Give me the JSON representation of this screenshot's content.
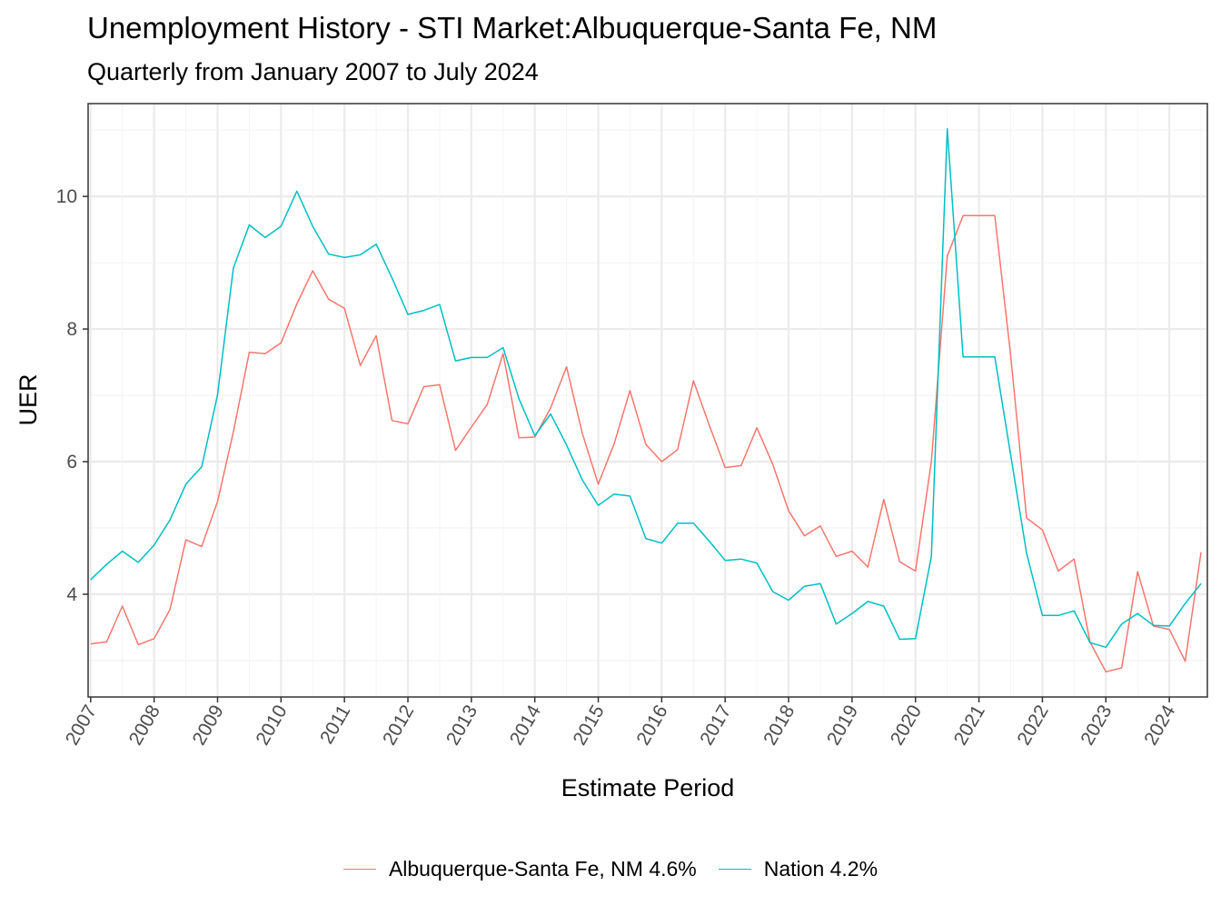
{
  "chart_data": {
    "type": "line",
    "title": "Unemployment History - STI Market:Albuquerque-Santa Fe, NM",
    "subtitle": "Quarterly from January 2007 to July 2024",
    "xlabel": "Estimate Period",
    "ylabel": "UER",
    "x_tick_labels": [
      "2007",
      "2008",
      "2009",
      "2010",
      "2011",
      "2012",
      "2013",
      "2014",
      "2015",
      "2016",
      "2017",
      "2018",
      "2019",
      "2020",
      "2021",
      "2022",
      "2023",
      "2024"
    ],
    "y_tick_labels": [
      "4",
      "6",
      "8",
      "10"
    ],
    "y_ticks": [
      4,
      6,
      8,
      10
    ],
    "x_range": [
      2006.96,
      2024.6
    ],
    "ylim": [
      2.45,
      11.4
    ],
    "grid": true,
    "legend_position": "bottom",
    "x": [
      2007.0,
      2007.25,
      2007.5,
      2007.75,
      2008.0,
      2008.25,
      2008.5,
      2008.75,
      2009.0,
      2009.25,
      2009.5,
      2009.75,
      2010.0,
      2010.25,
      2010.5,
      2010.75,
      2011.0,
      2011.25,
      2011.5,
      2011.75,
      2012.0,
      2012.25,
      2012.5,
      2012.75,
      2013.0,
      2013.25,
      2013.5,
      2013.75,
      2014.0,
      2014.25,
      2014.5,
      2014.75,
      2015.0,
      2015.25,
      2015.5,
      2015.75,
      2016.0,
      2016.25,
      2016.5,
      2016.75,
      2017.0,
      2017.25,
      2017.5,
      2017.75,
      2018.0,
      2018.25,
      2018.5,
      2018.75,
      2019.0,
      2019.25,
      2019.5,
      2019.75,
      2020.0,
      2020.25,
      2020.5,
      2020.75,
      2021.0,
      2021.25,
      2021.5,
      2021.75,
      2022.0,
      2022.25,
      2022.5,
      2022.75,
      2023.0,
      2023.25,
      2023.5,
      2023.75,
      2024.0,
      2024.25,
      2024.5
    ],
    "series": [
      {
        "name": "Albuquerque-Santa Fe, NM 4.6%",
        "color": "#f8766d",
        "values": [
          3.25,
          3.28,
          3.82,
          3.24,
          3.33,
          3.77,
          4.82,
          4.72,
          5.4,
          6.45,
          7.65,
          7.63,
          7.79,
          8.38,
          8.88,
          8.45,
          8.31,
          7.45,
          7.9,
          6.62,
          6.57,
          7.13,
          7.16,
          6.17,
          6.52,
          6.86,
          7.63,
          6.36,
          6.37,
          6.81,
          7.43,
          6.42,
          5.66,
          6.27,
          7.07,
          6.26,
          6.0,
          6.18,
          7.22,
          6.55,
          5.91,
          5.94,
          6.51,
          5.96,
          5.26,
          4.88,
          5.03,
          4.57,
          4.65,
          4.41,
          5.43,
          4.49,
          4.35,
          6.0,
          9.1,
          9.71,
          9.71,
          9.71,
          7.6,
          5.15,
          4.97,
          4.35,
          4.53,
          3.28,
          2.83,
          2.89,
          4.34,
          3.52,
          3.47,
          2.99,
          4.63
        ]
      },
      {
        "name": "Nation 4.2%",
        "color": "#00bfc4",
        "values": [
          4.22,
          4.45,
          4.65,
          4.48,
          4.74,
          5.12,
          5.66,
          5.92,
          7.01,
          8.92,
          9.57,
          9.38,
          9.55,
          10.08,
          9.55,
          9.13,
          9.08,
          9.12,
          9.28,
          8.77,
          8.22,
          8.28,
          8.37,
          7.52,
          7.57,
          7.57,
          7.72,
          6.95,
          6.39,
          6.72,
          6.25,
          5.72,
          5.34,
          5.51,
          5.48,
          4.84,
          4.77,
          5.07,
          5.07,
          4.8,
          4.51,
          4.53,
          4.47,
          4.04,
          3.91,
          4.12,
          4.16,
          3.55,
          3.71,
          3.89,
          3.82,
          3.32,
          3.33,
          4.57,
          11.02,
          7.58,
          7.58,
          7.58,
          6.1,
          4.62,
          3.68,
          3.68,
          3.75,
          3.27,
          3.2,
          3.55,
          3.71,
          3.53,
          3.52,
          3.86,
          4.16
        ]
      }
    ]
  }
}
